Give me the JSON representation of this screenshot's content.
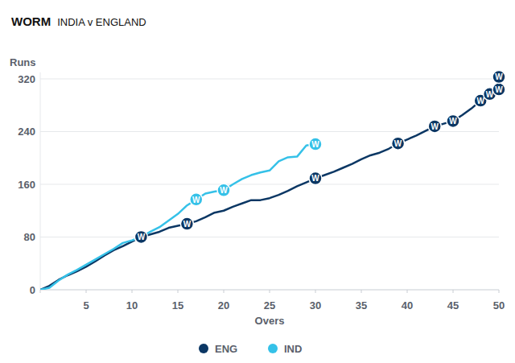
{
  "chart_data": {
    "type": "line",
    "title": "WORM",
    "subtitle": "INDIA v ENGLAND",
    "x_label": "Overs",
    "y_label": "Runs",
    "wicket_label": "W",
    "xlim": [
      0,
      50
    ],
    "xticks": [
      0,
      5,
      10,
      15,
      20,
      25,
      30,
      35,
      40,
      45,
      50
    ],
    "ylim": [
      0,
      330
    ],
    "yticks": [
      0,
      80,
      160,
      240,
      320
    ],
    "grid": true,
    "legend": "bottom",
    "series": [
      {
        "name": "ENG",
        "color": "#0b3764",
        "x": [
          0,
          1,
          2,
          3,
          4,
          5,
          6,
          7,
          8,
          9,
          10,
          11,
          12,
          13,
          14,
          15,
          16,
          17,
          18,
          19,
          20,
          21,
          22,
          23,
          24,
          25,
          26,
          27,
          28,
          29,
          30,
          31,
          32,
          33,
          34,
          35,
          36,
          37,
          38,
          39,
          40,
          41,
          42,
          43,
          44,
          45,
          46,
          47,
          48,
          49,
          50,
          50
        ],
        "values": [
          0,
          6,
          15,
          22,
          28,
          35,
          43,
          52,
          60,
          66,
          73,
          80,
          84,
          88,
          94,
          97,
          100,
          104,
          110,
          117,
          120,
          126,
          131,
          136,
          136,
          139,
          144,
          150,
          157,
          163,
          169,
          174,
          179,
          185,
          191,
          198,
          204,
          208,
          214,
          222,
          228,
          234,
          241,
          248,
          252,
          256,
          265,
          275,
          287,
          297,
          304,
          323
        ],
        "wickets": {
          "x": [
            11,
            16,
            30,
            39,
            43,
            45,
            48,
            49,
            50,
            50
          ],
          "values": [
            80,
            100,
            169,
            222,
            248,
            256,
            287,
            297,
            304,
            323
          ]
        }
      },
      {
        "name": "IND",
        "color": "#35c1e8",
        "x": [
          0,
          1,
          2,
          3,
          4,
          5,
          6,
          7,
          8,
          9,
          10,
          11,
          12,
          13,
          14,
          15,
          16,
          17,
          18,
          19,
          20,
          21,
          22,
          23,
          24,
          25,
          26,
          27,
          28,
          29,
          30
        ],
        "values": [
          0,
          3,
          14,
          23,
          30,
          38,
          46,
          54,
          62,
          71,
          75,
          80,
          88,
          95,
          105,
          115,
          128,
          137,
          146,
          149,
          151,
          160,
          168,
          174,
          178,
          181,
          195,
          201,
          202,
          219,
          221
        ],
        "wickets": {
          "x": [
            17,
            20,
            30
          ],
          "values": [
            137,
            151,
            221
          ]
        }
      }
    ]
  }
}
